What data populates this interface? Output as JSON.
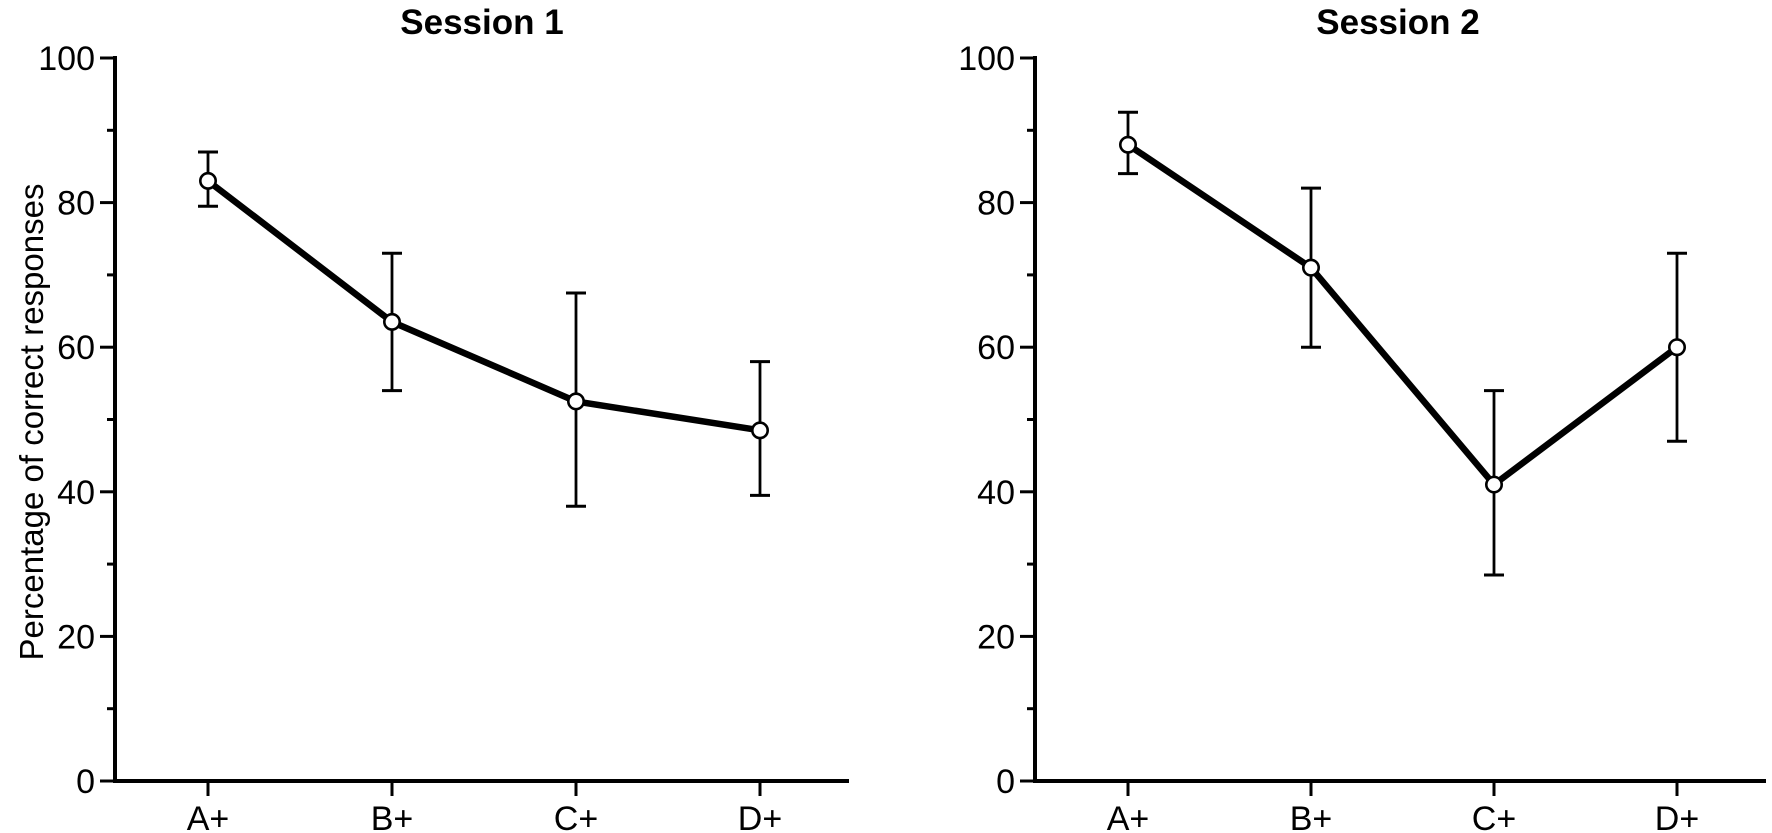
{
  "figure": {
    "background_color": "#ffffff",
    "ink_color": "#000000",
    "y_axis_label": "Percentage of correct responses"
  },
  "chart_data": [
    {
      "type": "line",
      "title": "Session 1",
      "categories": [
        "A+",
        "B+",
        "C+",
        "D+"
      ],
      "series": [
        {
          "name": "Percentage of correct responses",
          "values": [
            83,
            63.5,
            52.5,
            48.5
          ],
          "error_low": [
            79.5,
            54,
            38,
            39.5
          ],
          "error_high": [
            87,
            73,
            67.5,
            58
          ]
        }
      ],
      "xlabel": "",
      "ylabel": "Percentage of correct responses",
      "ylim": [
        0,
        100
      ],
      "yticks_major": [
        0,
        20,
        40,
        60,
        80,
        100
      ],
      "yticks_minor": [
        10,
        30,
        50,
        70,
        90
      ],
      "grid": false,
      "legend": "none",
      "marker": "open-circle"
    },
    {
      "type": "line",
      "title": "Session 2",
      "categories": [
        "A+",
        "B+",
        "C+",
        "D+"
      ],
      "series": [
        {
          "name": "Percentage of correct responses",
          "values": [
            88,
            71,
            41,
            60
          ],
          "error_low": [
            84,
            60,
            28.5,
            47
          ],
          "error_high": [
            92.5,
            82,
            54,
            73
          ]
        }
      ],
      "xlabel": "",
      "ylabel": "",
      "ylim": [
        0,
        100
      ],
      "yticks_major": [
        0,
        20,
        40,
        60,
        80,
        100
      ],
      "yticks_minor": [
        10,
        30,
        50,
        70,
        90
      ],
      "grid": false,
      "legend": "none",
      "marker": "open-circle"
    }
  ]
}
